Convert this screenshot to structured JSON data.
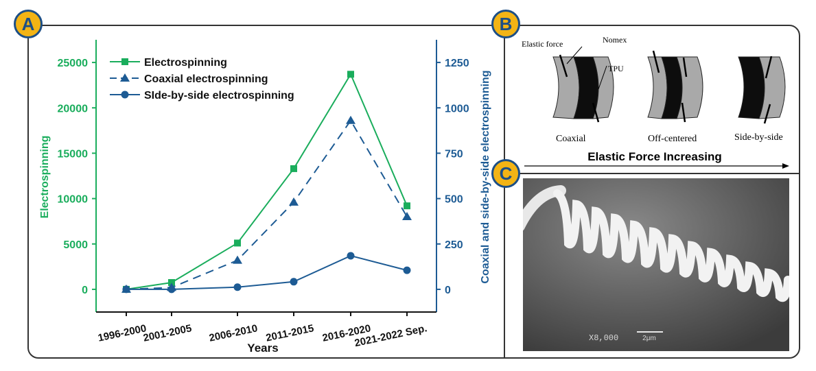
{
  "panels": {
    "a": "A",
    "b": "B",
    "c": "C"
  },
  "chart_data": {
    "type": "line",
    "categories": [
      "1996-2000",
      "2001-2005",
      "2006-2010",
      "2011-2015",
      "2016-2020",
      "2021-2022 Sep."
    ],
    "xlabel": "Years",
    "ylabel": "Electrospinning",
    "ylabel_right": "Coaxial and side-by-side electrospinning",
    "ylim": [
      -2500,
      27500
    ],
    "ylim_right": [
      -125,
      1375
    ],
    "yticks": [
      0,
      5000,
      10000,
      15000,
      20000,
      25000
    ],
    "yticks_right": [
      0,
      250,
      500,
      750,
      1000,
      1250
    ],
    "legend_position": "top-left",
    "series": [
      {
        "name": "Electrospinning",
        "axis": "left",
        "color": "#1aad5c",
        "marker": "square",
        "dash": "solid",
        "values": [
          0,
          750,
          5100,
          13300,
          23700,
          9200
        ]
      },
      {
        "name": "Coaxial electrospinning",
        "axis": "right",
        "color": "#1d5b94",
        "marker": "triangle",
        "dash": "dashed",
        "values": [
          0,
          10,
          160,
          480,
          930,
          400
        ]
      },
      {
        "name": "SIde-by-side electrospinning",
        "axis": "right",
        "color": "#1d5b94",
        "marker": "circle",
        "dash": "solid",
        "values": [
          0,
          0,
          12,
          42,
          185,
          105
        ]
      }
    ]
  },
  "diagram": {
    "labels": {
      "elastic_force": "Elastic force",
      "nomex": "Nomex",
      "tpu": "TPU",
      "coaxial": "Coaxial",
      "off_centered": "Off-centered",
      "side_by_side": "Side-by-side"
    },
    "arrow_text": "Elastic Force Increasing"
  },
  "micrograph": {
    "magnification": "X8,000",
    "scale": "2μm"
  }
}
